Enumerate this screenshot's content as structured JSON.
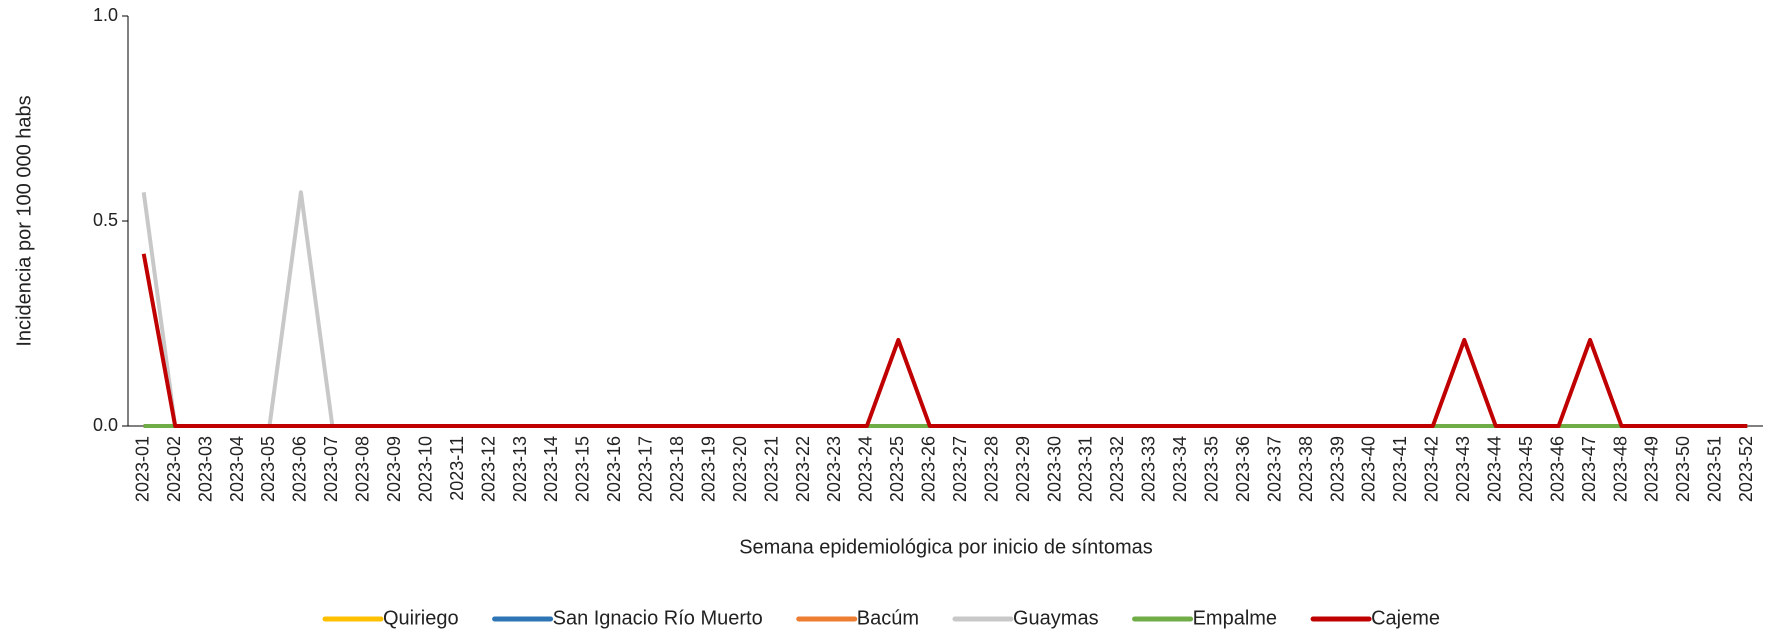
{
  "chart_data": {
    "type": "line",
    "x_label": "Semana epidemiológica por inicio de síntomas",
    "y_label": "Incidencia por 100 000 habs",
    "categories": [
      "2023-01",
      "2023-02",
      "2023-03",
      "2023-04",
      "2023-05",
      "2023-06",
      "2023-07",
      "2023-08",
      "2023-09",
      "2023-10",
      "2023-11",
      "2023-12",
      "2023-13",
      "2023-14",
      "2023-15",
      "2023-16",
      "2023-17",
      "2023-18",
      "2023-19",
      "2023-20",
      "2023-21",
      "2023-22",
      "2023-23",
      "2023-24",
      "2023-25",
      "2023-26",
      "2023-27",
      "2023-28",
      "2023-29",
      "2023-30",
      "2023-31",
      "2023-32",
      "2023-33",
      "2023-34",
      "2023-35",
      "2023-36",
      "2023-37",
      "2023-38",
      "2023-39",
      "2023-40",
      "2023-41",
      "2023-42",
      "2023-43",
      "2023-44",
      "2023-45",
      "2023-46",
      "2023-47",
      "2023-48",
      "2023-49",
      "2023-50",
      "2023-51",
      "2023-52"
    ],
    "series": [
      {
        "name": "Quiriego",
        "color": "#ffc000",
        "values": [
          0,
          0,
          0,
          0,
          0,
          0,
          0,
          0,
          0,
          0,
          0,
          0,
          0,
          0,
          0,
          0,
          0,
          0,
          0,
          0,
          0,
          0,
          0,
          0,
          0,
          0,
          0,
          0,
          0,
          0,
          0,
          0,
          0,
          0,
          0,
          0,
          0,
          0,
          0,
          0,
          0,
          0,
          0,
          0,
          0,
          0,
          0,
          0,
          0,
          0,
          0,
          0
        ]
      },
      {
        "name": "San Ignacio Río Muerto",
        "color": "#2e75b6",
        "values": [
          0,
          0,
          0,
          0,
          0,
          0,
          0,
          0,
          0,
          0,
          0,
          0,
          0,
          0,
          0,
          0,
          0,
          0,
          0,
          0,
          0,
          0,
          0,
          0,
          0,
          0,
          0,
          0,
          0,
          0,
          0,
          0,
          0,
          0,
          0,
          0,
          0,
          0,
          0,
          0,
          0,
          0,
          0,
          0,
          0,
          0,
          0,
          0,
          0,
          0,
          0,
          0
        ]
      },
      {
        "name": "Bacúm",
        "color": "#ed7d31",
        "values": [
          0,
          0,
          0,
          0,
          0,
          0,
          0,
          0,
          0,
          0,
          0,
          0,
          0,
          0,
          0,
          0,
          0,
          0,
          0,
          0,
          0,
          0,
          0,
          0,
          0,
          0,
          0,
          0,
          0,
          0,
          0,
          0,
          0,
          0,
          0,
          0,
          0,
          0,
          0,
          0,
          0,
          0,
          0,
          0,
          0,
          0,
          0,
          0,
          0,
          0,
          0,
          0
        ]
      },
      {
        "name": "Guaymas",
        "color": "#c8c8c8",
        "values": [
          0.57,
          0,
          0,
          0,
          0,
          0.57,
          0,
          0,
          0,
          0,
          0,
          0,
          0,
          0,
          0,
          0,
          0,
          0,
          0,
          0,
          0,
          0,
          0,
          0,
          0,
          0,
          0,
          0,
          0,
          0,
          0,
          0,
          0,
          0,
          0,
          0,
          0,
          0,
          0,
          0,
          0,
          0,
          0,
          0,
          0,
          0,
          0,
          0,
          0,
          0,
          0,
          0
        ]
      },
      {
        "name": "Empalme",
        "color": "#70ad47",
        "values": [
          0,
          0,
          0,
          0,
          0,
          0,
          0,
          0,
          0,
          0,
          0,
          0,
          0,
          0,
          0,
          0,
          0,
          0,
          0,
          0,
          0,
          0,
          0,
          0,
          0,
          0,
          0,
          0,
          0,
          0,
          0,
          0,
          0,
          0,
          0,
          0,
          0,
          0,
          0,
          0,
          0,
          0,
          0,
          0,
          0,
          0,
          0,
          0,
          0,
          0,
          0,
          0
        ]
      },
      {
        "name": "Cajeme",
        "color": "#c00000",
        "values": [
          0.42,
          0,
          0,
          0,
          0,
          0,
          0,
          0,
          0,
          0,
          0,
          0,
          0,
          0,
          0,
          0,
          0,
          0,
          0,
          0,
          0,
          0,
          0,
          0,
          0.21,
          0,
          0,
          0,
          0,
          0,
          0,
          0,
          0,
          0,
          0,
          0,
          0,
          0,
          0,
          0,
          0,
          0,
          0.21,
          0,
          0,
          0,
          0.21,
          0,
          0,
          0,
          0,
          0
        ]
      }
    ],
    "ylim": [
      0,
      1
    ],
    "yticks": [
      {
        "value": 0,
        "label": "0.0"
      },
      0.5,
      {
        "value": 1,
        "label": "1.0"
      }
    ],
    "grid": false,
    "legend": "bottom"
  }
}
